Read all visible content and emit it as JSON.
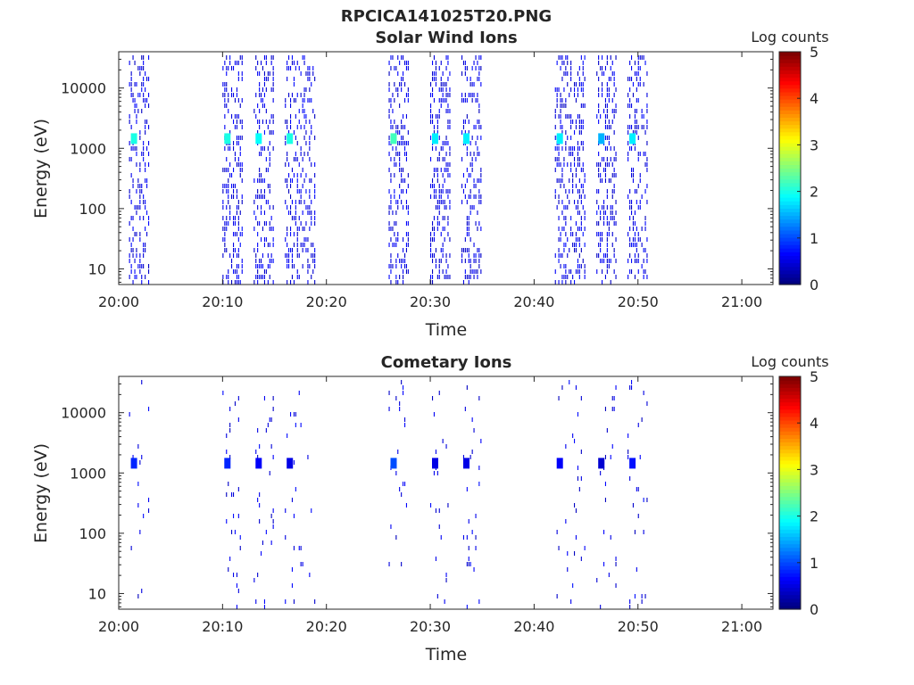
{
  "figure": {
    "title": "RPCICA141025T20.PNG"
  },
  "chart_data": [
    {
      "type": "heatmap",
      "title": "Solar Wind Ions",
      "xlabel": "Time",
      "ylabel": "Energy (eV)",
      "x_ticks": [
        "20:00",
        "20:10",
        "20:20",
        "20:30",
        "20:40",
        "20:50",
        "21:00"
      ],
      "x_range": [
        "20:00",
        "21:03"
      ],
      "y_scale": "log",
      "y_ticks": [
        "10",
        "100",
        "1000",
        "10000"
      ],
      "y_range": [
        5.5,
        40000
      ],
      "colorbar": {
        "title": "Log counts",
        "ticks": [
          "0",
          "1",
          "2",
          "3",
          "4",
          "5"
        ],
        "range": [
          0,
          5
        ],
        "colormap": "jet"
      },
      "bursts": [
        {
          "start": "20:01",
          "end": "20:03",
          "peak_energy_eV": 1450,
          "peak_log_counts": 2.0
        },
        {
          "start": "20:10",
          "end": "20:12",
          "peak_energy_eV": 1450,
          "peak_log_counts": 2.0
        },
        {
          "start": "20:13",
          "end": "20:15",
          "peak_energy_eV": 1450,
          "peak_log_counts": 1.9
        },
        {
          "start": "20:16",
          "end": "20:19",
          "peak_energy_eV": 1450,
          "peak_log_counts": 2.0
        },
        {
          "start": "20:26",
          "end": "20:28",
          "peak_energy_eV": 1450,
          "peak_log_counts": 2.2
        },
        {
          "start": "20:30",
          "end": "20:32",
          "peak_energy_eV": 1450,
          "peak_log_counts": 1.8
        },
        {
          "start": "20:33",
          "end": "20:35",
          "peak_energy_eV": 1450,
          "peak_log_counts": 1.8
        },
        {
          "start": "20:42",
          "end": "20:45",
          "peak_energy_eV": 1450,
          "peak_log_counts": 1.8
        },
        {
          "start": "20:46",
          "end": "20:48",
          "peak_energy_eV": 1450,
          "peak_log_counts": 1.5
        },
        {
          "start": "20:49",
          "end": "20:51",
          "peak_energy_eV": 1450,
          "peak_log_counts": 1.8
        }
      ],
      "background_log_counts": 0.3
    },
    {
      "type": "heatmap",
      "title": "Cometary Ions",
      "xlabel": "Time",
      "ylabel": "Energy (eV)",
      "x_ticks": [
        "20:00",
        "20:10",
        "20:20",
        "20:30",
        "20:40",
        "20:50",
        "21:00"
      ],
      "x_range": [
        "20:00",
        "21:03"
      ],
      "y_scale": "log",
      "y_ticks": [
        "10",
        "100",
        "1000",
        "10000"
      ],
      "y_range": [
        5.5,
        40000
      ],
      "colorbar": {
        "title": "Log counts",
        "ticks": [
          "0",
          "1",
          "2",
          "3",
          "4",
          "5"
        ],
        "range": [
          0,
          5
        ],
        "colormap": "jet"
      },
      "bursts": [
        {
          "start": "20:01",
          "end": "20:03",
          "peak_energy_eV": 1450,
          "peak_log_counts": 0.8
        },
        {
          "start": "20:10",
          "end": "20:12",
          "peak_energy_eV": 1450,
          "peak_log_counts": 0.8
        },
        {
          "start": "20:13",
          "end": "20:15",
          "peak_energy_eV": 1450,
          "peak_log_counts": 0.6
        },
        {
          "start": "20:16",
          "end": "20:19",
          "peak_energy_eV": 1450,
          "peak_log_counts": 0.5
        },
        {
          "start": "20:26",
          "end": "20:28",
          "peak_energy_eV": 1450,
          "peak_log_counts": 1.0
        },
        {
          "start": "20:30",
          "end": "20:32",
          "peak_energy_eV": 1450,
          "peak_log_counts": 0.5
        },
        {
          "start": "20:33",
          "end": "20:35",
          "peak_energy_eV": 1450,
          "peak_log_counts": 0.5
        },
        {
          "start": "20:42",
          "end": "20:45",
          "peak_energy_eV": 1450,
          "peak_log_counts": 0.6
        },
        {
          "start": "20:46",
          "end": "20:48",
          "peak_energy_eV": 1450,
          "peak_log_counts": 0.4
        },
        {
          "start": "20:49",
          "end": "20:51",
          "peak_energy_eV": 1450,
          "peak_log_counts": 0.7
        }
      ],
      "background_log_counts": 0.3
    }
  ]
}
